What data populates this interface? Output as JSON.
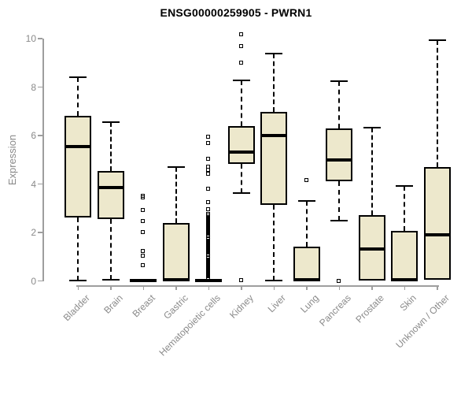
{
  "colors": {
    "box_fill": "#ede8cc",
    "box_border": "#000000",
    "median": "#000000",
    "axis_line": "#9e9e9e",
    "axis_text": "#8a8a8a",
    "title_text": "#000000",
    "background": "#ffffff"
  },
  "chart_data": {
    "type": "boxplot",
    "title": "ENSG00000259905 - PWRN1",
    "xlabel": "",
    "ylabel": "Expression",
    "ylim": [
      0,
      10.3
    ],
    "yticks": [
      0,
      2,
      4,
      6,
      8,
      10
    ],
    "grid": false,
    "legend": false,
    "categories": [
      "Bladder",
      "Brain",
      "Breast",
      "Gastric",
      "Hematopoietic cells",
      "Kidney",
      "Liver",
      "Lung",
      "Pancreas",
      "Prostate",
      "Skin",
      "Unknown / Other"
    ],
    "boxes": [
      {
        "category": "Bladder",
        "whisker_low": 0.02,
        "q1": 2.61,
        "median": 5.56,
        "q3": 6.81,
        "whisker_high": 8.43,
        "outliers": []
      },
      {
        "category": "Brain",
        "whisker_low": 0.05,
        "q1": 2.55,
        "median": 3.85,
        "q3": 4.55,
        "whisker_high": 6.56,
        "outliers": []
      },
      {
        "category": "Breast",
        "whisker_low": 0,
        "q1": 0,
        "median": 0.03,
        "q3": 0.08,
        "whisker_high": 0.08,
        "outliers": [
          3.52,
          3.45,
          2.93,
          2.49,
          2.01,
          1.25,
          1.06,
          0.65
        ]
      },
      {
        "category": "Gastric",
        "whisker_low": 0.02,
        "q1": 0.02,
        "median": 0.07,
        "q3": 2.39,
        "whisker_high": 4.72,
        "outliers": []
      },
      {
        "category": "Hematopoietic cells",
        "whisker_low": 0,
        "q1": 0,
        "median": 0.03,
        "q3": 0.08,
        "whisker_high": 0.08,
        "outliers": [
          5.96,
          5.69,
          5.04,
          4.72,
          4.58,
          4.44,
          3.8,
          3.25,
          2.98,
          2.76,
          2.7,
          2.65,
          2.6,
          2.55,
          2.5,
          2.45,
          2.4,
          2.35,
          2.3,
          2.25,
          2.2,
          2.15,
          2.1,
          2.05,
          2.0,
          1.95,
          1.9,
          1.78,
          1.73,
          1.68,
          1.63,
          1.58,
          1.53,
          1.48,
          1.43,
          1.38,
          1.33,
          1.28,
          1.23,
          1.18,
          1.13,
          1.08,
          0.95,
          0.9,
          0.85,
          0.8,
          0.75,
          0.7,
          0.65,
          0.6,
          0.55,
          0.5,
          0.45,
          0.4,
          0.35,
          0.3,
          0.25,
          0.2,
          0.15,
          0.1
        ]
      },
      {
        "category": "Kidney",
        "whisker_low": 3.63,
        "q1": 4.83,
        "median": 5.31,
        "q3": 6.4,
        "whisker_high": 8.27,
        "outliers": [
          10.19,
          9.71,
          9.0,
          0.03
        ]
      },
      {
        "category": "Liver",
        "whisker_low": 0.03,
        "q1": 3.14,
        "median": 6.01,
        "q3": 6.99,
        "whisker_high": 9.39,
        "outliers": []
      },
      {
        "category": "Lung",
        "whisker_low": 0.02,
        "q1": 0.02,
        "median": 0.07,
        "q3": 1.41,
        "whisker_high": 3.31,
        "outliers": [
          4.17
        ]
      },
      {
        "category": "Pancreas",
        "whisker_low": 2.49,
        "q1": 4.12,
        "median": 4.99,
        "q3": 6.29,
        "whisker_high": 8.26,
        "outliers": [
          0.02
        ]
      },
      {
        "category": "Prostate",
        "whisker_low": 0.03,
        "q1": 0.03,
        "median": 1.32,
        "q3": 2.71,
        "whisker_high": 6.34,
        "outliers": []
      },
      {
        "category": "Skin",
        "whisker_low": 0.02,
        "q1": 0.02,
        "median": 0.07,
        "q3": 2.06,
        "whisker_high": 3.92,
        "outliers": []
      },
      {
        "category": "Unknown / Other",
        "whisker_low": 0.05,
        "q1": 0.05,
        "median": 1.9,
        "q3": 4.72,
        "whisker_high": 9.94,
        "outliers": []
      }
    ]
  }
}
